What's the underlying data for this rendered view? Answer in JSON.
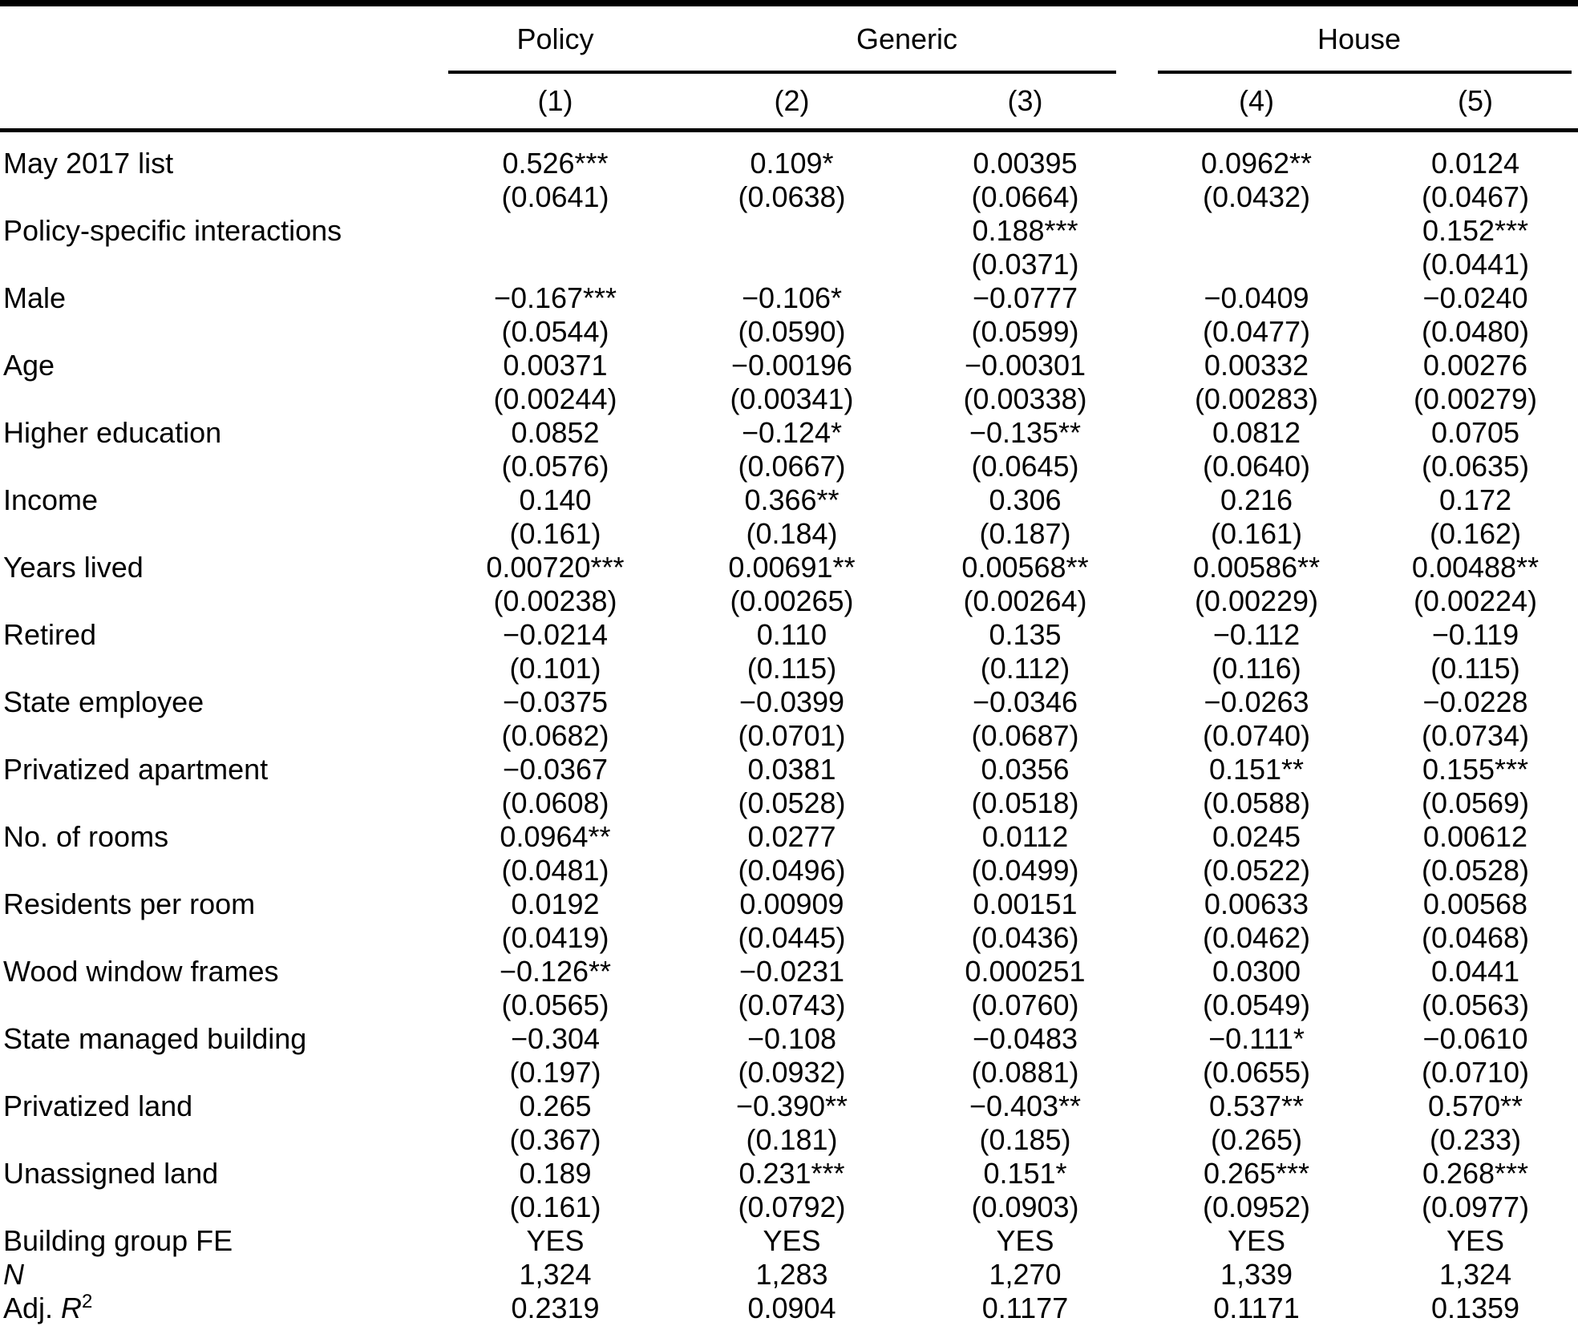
{
  "table": {
    "header": {
      "groups": [
        {
          "label": "Policy",
          "span": 1
        },
        {
          "label": "Generic",
          "span": 2
        },
        {
          "label": "House",
          "span": 2
        }
      ],
      "numbers": [
        "(1)",
        "(2)",
        "(3)",
        "(4)",
        "(5)"
      ]
    },
    "rows": [
      {
        "label": "May 2017 list",
        "coefs": [
          "0.526***",
          "0.109*",
          "0.00395",
          "0.0962**",
          "0.0124"
        ],
        "ses": [
          "(0.0641)",
          "(0.0638)",
          "(0.0664)",
          "(0.0432)",
          "(0.0467)"
        ]
      },
      {
        "label": "Policy-specific interactions",
        "coefs": [
          "",
          "",
          "0.188***",
          "",
          "0.152***"
        ],
        "ses": [
          "",
          "",
          "(0.0371)",
          "",
          "(0.0441)"
        ]
      },
      {
        "label": "Male",
        "coefs": [
          "−0.167***",
          "−0.106*",
          "−0.0777",
          "−0.0409",
          "−0.0240"
        ],
        "ses": [
          "(0.0544)",
          "(0.0590)",
          "(0.0599)",
          "(0.0477)",
          "(0.0480)"
        ]
      },
      {
        "label": "Age",
        "coefs": [
          "0.00371",
          "−0.00196",
          "−0.00301",
          "0.00332",
          "0.00276"
        ],
        "ses": [
          "(0.00244)",
          "(0.00341)",
          "(0.00338)",
          "(0.00283)",
          "(0.00279)"
        ]
      },
      {
        "label": "Higher education",
        "coefs": [
          "0.0852",
          "−0.124*",
          "−0.135**",
          "0.0812",
          "0.0705"
        ],
        "ses": [
          "(0.0576)",
          "(0.0667)",
          "(0.0645)",
          "(0.0640)",
          "(0.0635)"
        ]
      },
      {
        "label": "Income",
        "coefs": [
          "0.140",
          "0.366**",
          "0.306",
          "0.216",
          "0.172"
        ],
        "ses": [
          "(0.161)",
          "(0.184)",
          "(0.187)",
          "(0.161)",
          "(0.162)"
        ]
      },
      {
        "label": "Years lived",
        "coefs": [
          "0.00720***",
          "0.00691**",
          "0.00568**",
          "0.00586**",
          "0.00488**"
        ],
        "ses": [
          "(0.00238)",
          "(0.00265)",
          "(0.00264)",
          "(0.00229)",
          "(0.00224)"
        ]
      },
      {
        "label": "Retired",
        "coefs": [
          "−0.0214",
          "0.110",
          "0.135",
          "−0.112",
          "−0.119"
        ],
        "ses": [
          "(0.101)",
          "(0.115)",
          "(0.112)",
          "(0.116)",
          "(0.115)"
        ]
      },
      {
        "label": "State employee",
        "coefs": [
          "−0.0375",
          "−0.0399",
          "−0.0346",
          "−0.0263",
          "−0.0228"
        ],
        "ses": [
          "(0.0682)",
          "(0.0701)",
          "(0.0687)",
          "(0.0740)",
          "(0.0734)"
        ]
      },
      {
        "label": "Privatized apartment",
        "coefs": [
          "−0.0367",
          "0.0381",
          "0.0356",
          "0.151**",
          "0.155***"
        ],
        "ses": [
          "(0.0608)",
          "(0.0528)",
          "(0.0518)",
          "(0.0588)",
          "(0.0569)"
        ]
      },
      {
        "label": "No. of rooms",
        "coefs": [
          "0.0964**",
          "0.0277",
          "0.0112",
          "0.0245",
          "0.00612"
        ],
        "ses": [
          "(0.0481)",
          "(0.0496)",
          "(0.0499)",
          "(0.0522)",
          "(0.0528)"
        ]
      },
      {
        "label": "Residents per room",
        "coefs": [
          "0.0192",
          "0.00909",
          "0.00151",
          "0.00633",
          "0.00568"
        ],
        "ses": [
          "(0.0419)",
          "(0.0445)",
          "(0.0436)",
          "(0.0462)",
          "(0.0468)"
        ]
      },
      {
        "label": "Wood window frames",
        "coefs": [
          "−0.126**",
          "−0.0231",
          "0.000251",
          "0.0300",
          "0.0441"
        ],
        "ses": [
          "(0.0565)",
          "(0.0743)",
          "(0.0760)",
          "(0.0549)",
          "(0.0563)"
        ]
      },
      {
        "label": "State managed building",
        "coefs": [
          "−0.304",
          "−0.108",
          "−0.0483",
          "−0.111*",
          "−0.0610"
        ],
        "ses": [
          "(0.197)",
          "(0.0932)",
          "(0.0881)",
          "(0.0655)",
          "(0.0710)"
        ]
      },
      {
        "label": "Privatized land",
        "coefs": [
          "0.265",
          "−0.390**",
          "−0.403**",
          "0.537**",
          "0.570**"
        ],
        "ses": [
          "(0.367)",
          "(0.181)",
          "(0.185)",
          "(0.265)",
          "(0.233)"
        ]
      },
      {
        "label": "Unassigned land",
        "coefs": [
          "0.189",
          "0.231***",
          "0.151*",
          "0.265***",
          "0.268***"
        ],
        "ses": [
          "(0.161)",
          "(0.0792)",
          "(0.0903)",
          "(0.0952)",
          "(0.0977)"
        ]
      }
    ],
    "summary_rows": [
      {
        "name": "building-group-fe",
        "label_parts": [
          {
            "t": "Building group FE",
            "s": "n"
          }
        ],
        "values": [
          "YES",
          "YES",
          "YES",
          "YES",
          "YES"
        ]
      },
      {
        "name": "n-observations",
        "label_parts": [
          {
            "t": "N",
            "s": "i"
          }
        ],
        "values": [
          "1,324",
          "1,283",
          "1,270",
          "1,339",
          "1,324"
        ]
      },
      {
        "name": "adjusted-r-squared",
        "label_parts": [
          {
            "t": "Adj. ",
            "s": "n"
          },
          {
            "t": "R",
            "s": "i"
          },
          {
            "t": "2",
            "s": "sup"
          }
        ],
        "values": [
          "0.2319",
          "0.0904",
          "0.1177",
          "0.1171",
          "0.1359"
        ]
      }
    ]
  }
}
